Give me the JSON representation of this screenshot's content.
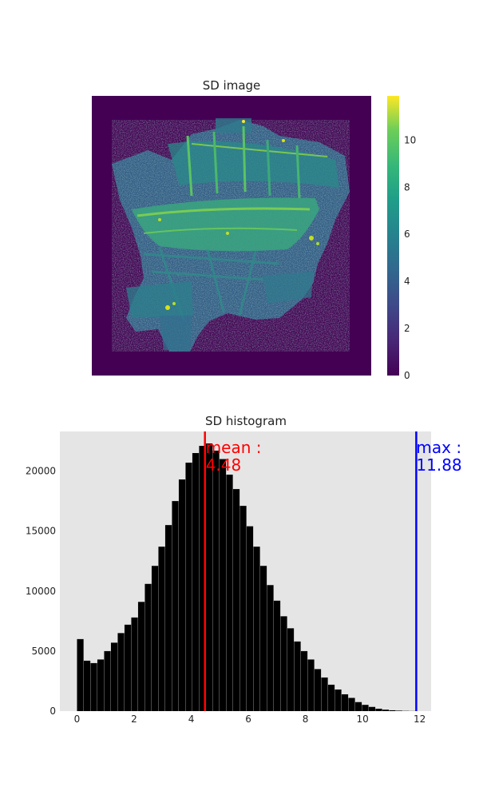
{
  "colors": {
    "axes_bg": "#e5e5e5",
    "bars": "#000000",
    "mean_line": "#ff0000",
    "max_line": "#0000ff",
    "viridis_low": "#440154",
    "viridis_mid": "#21918c",
    "viridis_high": "#fde725"
  },
  "chart_data": [
    {
      "type": "heatmap",
      "title": "SD image",
      "colorbar": {
        "range": [
          0,
          11.88
        ],
        "ticks": [
          "0",
          "2",
          "4",
          "6",
          "8",
          "10"
        ],
        "colormap": "viridis"
      },
      "content": "3D point-cloud style rendering of a shipwreck (boat hull with masts) on a dark purple background"
    },
    {
      "type": "bar",
      "title": "SD histogram",
      "xlim": [
        -0.6,
        12.4
      ],
      "ylim": [
        0,
        23300
      ],
      "x_ticks": [
        "0",
        "2",
        "4",
        "6",
        "8",
        "10",
        "12"
      ],
      "y_ticks": [
        "0",
        "5000",
        "10000",
        "15000",
        "20000"
      ],
      "bin_width": 0.2376,
      "bin_starts": [
        0,
        0.2376,
        0.4752,
        0.7128,
        0.9504,
        1.188,
        1.4256,
        1.6632,
        1.9008,
        2.1384,
        2.376,
        2.6136,
        2.8512,
        3.0888,
        3.3264,
        3.564,
        3.8016,
        4.0392,
        4.2768,
        4.5144,
        4.752,
        4.9896,
        5.2272,
        5.4648,
        5.7024,
        5.94,
        6.1776,
        6.4152,
        6.6528,
        6.8904,
        7.128,
        7.3656,
        7.6032,
        7.8408,
        8.0784,
        8.316,
        8.5536,
        8.7912,
        9.0288,
        9.2664,
        9.504,
        9.7416,
        9.9792,
        10.2168,
        10.4544,
        10.692,
        10.9296,
        11.1672,
        11.4048,
        11.6424
      ],
      "values": [
        6000,
        4200,
        4000,
        4300,
        5000,
        5700,
        6500,
        7200,
        7800,
        9100,
        10600,
        12100,
        13700,
        15500,
        17500,
        19300,
        20700,
        21500,
        22100,
        22300,
        21700,
        21000,
        19700,
        18500,
        17100,
        15400,
        13700,
        12100,
        10500,
        9200,
        7900,
        6900,
        5800,
        5000,
        4300,
        3500,
        2800,
        2200,
        1800,
        1400,
        1100,
        750,
        520,
        350,
        200,
        120,
        70,
        40,
        20,
        10
      ],
      "mean": {
        "value": 4.48,
        "label": "mean :",
        "value_label": "4.48"
      },
      "max": {
        "value": 11.88,
        "label": "max :",
        "value_label": "11.88"
      }
    }
  ]
}
